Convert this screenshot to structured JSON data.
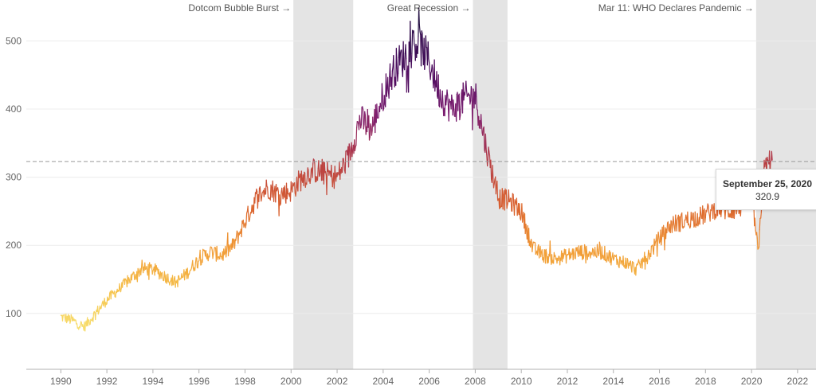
{
  "chart_data": {
    "type": "line",
    "title": "",
    "xlabel": "",
    "ylabel": "",
    "xlim": [
      1988.5,
      2022.8
    ],
    "ylim": [
      18,
      560
    ],
    "x_ticks": [
      1990,
      1992,
      1994,
      1996,
      1998,
      2000,
      2002,
      2004,
      2006,
      2008,
      2010,
      2012,
      2014,
      2016,
      2018,
      2020,
      2022
    ],
    "y_ticks": [
      100,
      200,
      300,
      400,
      500
    ],
    "grid": "horizontal",
    "color_scale": [
      "#f7e77a",
      "#f6c64f",
      "#f19a34",
      "#d9602f",
      "#b23a48",
      "#7c1d6f",
      "#4a0c5e",
      "#1f0c3f"
    ],
    "series": [
      {
        "x": [
          1990.0,
          1990.5,
          1991.0,
          1991.5,
          1992.0,
          1992.5,
          1993.0,
          1993.5,
          1994.0,
          1994.5,
          1995.0,
          1995.5,
          1996.0,
          1996.5,
          1997.0,
          1997.5,
          1998.0,
          1998.5,
          1999.0,
          1999.5,
          2000.0,
          2000.5,
          2001.0,
          2001.5,
          2002.0,
          2002.5,
          2003.0,
          2003.5,
          2004.0,
          2004.5,
          2005.0,
          2005.5,
          2006.0,
          2006.5,
          2007.0,
          2007.5,
          2008.0,
          2008.5,
          2009.0,
          2009.5,
          2010.0,
          2010.5,
          2011.0,
          2011.5,
          2012.0,
          2012.5,
          2013.0,
          2013.5,
          2014.0,
          2014.5,
          2015.0,
          2015.5,
          2016.0,
          2016.5,
          2017.0,
          2017.5,
          2018.0,
          2018.5,
          2019.0,
          2019.5,
          2020.0,
          2020.3,
          2020.5,
          2020.73,
          2020.9
        ],
        "y": [
          95,
          90,
          80,
          100,
          120,
          135,
          150,
          165,
          165,
          155,
          145,
          160,
          180,
          190,
          185,
          200,
          235,
          270,
          285,
          275,
          280,
          300,
          310,
          305,
          300,
          330,
          385,
          370,
          420,
          460,
          480,
          500,
          470,
          420,
          400,
          415,
          420,
          340,
          270,
          265,
          250,
          195,
          185,
          180,
          185,
          190,
          190,
          190,
          180,
          175,
          165,
          185,
          210,
          230,
          235,
          240,
          245,
          255,
          250,
          255,
          280,
          185,
          305,
          320.9,
          325
        ]
      }
    ],
    "shaded_periods": [
      [
        2000.1,
        2002.7
      ],
      [
        2007.9,
        2009.4
      ],
      [
        2020.2,
        2022.8
      ]
    ],
    "annotations": [
      "Dotcom Bubble Burst →",
      "Great Recession →",
      "Mar 11: WHO Declares Pandemic →"
    ],
    "reference_line": 323,
    "tooltip": {
      "date": "September 25, 2020",
      "value": "320.9"
    }
  }
}
